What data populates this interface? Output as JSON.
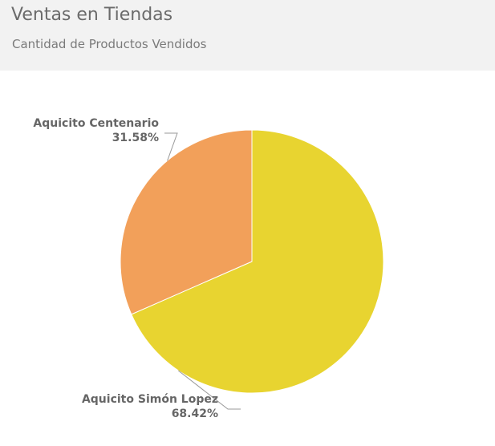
{
  "header": {
    "title": "Ventas en Tiendas",
    "subtitle": "Cantidad de Productos Vendidos"
  },
  "chart_data": {
    "type": "pie",
    "title": "Ventas en Tiendas",
    "subtitle": "Cantidad de Productos Vendidos",
    "slices": [
      {
        "name": "Aquicito Simón Lopez",
        "percent": 68.42,
        "label": "68.42%",
        "color": "#e8d430"
      },
      {
        "name": "Aquicito Centenario",
        "percent": 31.58,
        "label": "31.58%",
        "color": "#f2a05a"
      }
    ],
    "legend": "none",
    "data_labels": "outside"
  }
}
